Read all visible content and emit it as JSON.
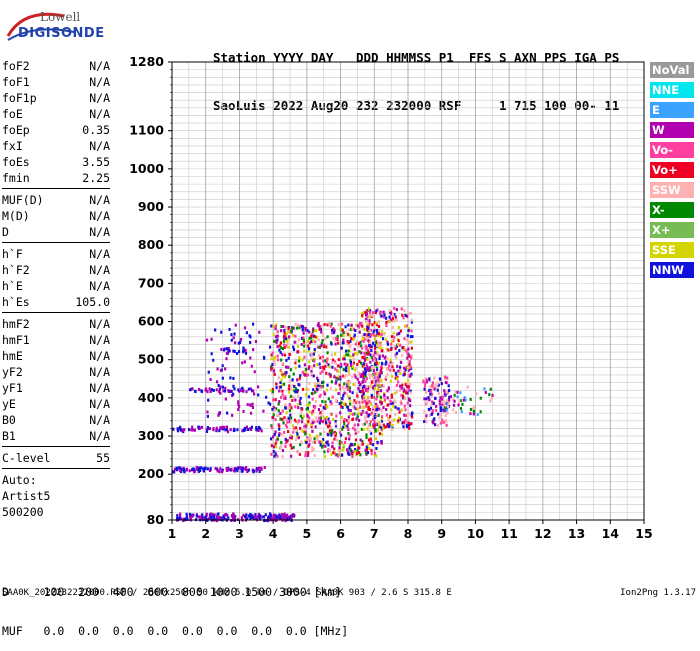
{
  "logo": {
    "line1": "Lowell",
    "line2": "DIGISONDE"
  },
  "header": {
    "row1": "Station YYYY DAY   DDD HHMMSS P1  FFS S AXN PPS IGA PS",
    "row2": "SaoLuis 2022 Aug20 232 232000 RSF     1 715 100 00- 11"
  },
  "params": {
    "group1": [
      {
        "name": "foF2",
        "value": "N/A"
      },
      {
        "name": "foF1",
        "value": "N/A"
      },
      {
        "name": "foF1p",
        "value": "N/A"
      },
      {
        "name": "foE",
        "value": "N/A"
      },
      {
        "name": "foEp",
        "value": "0.35"
      },
      {
        "name": "fxI",
        "value": "N/A"
      },
      {
        "name": "foEs",
        "value": "3.55"
      },
      {
        "name": "fmin",
        "value": "2.25"
      }
    ],
    "group2": [
      {
        "name": "MUF(D)",
        "value": "N/A"
      },
      {
        "name": "M(D)",
        "value": "N/A"
      },
      {
        "name": "D",
        "value": "N/A"
      }
    ],
    "group3": [
      {
        "name": "h`F",
        "value": "N/A"
      },
      {
        "name": "h`F2",
        "value": "N/A"
      },
      {
        "name": "h`E",
        "value": "N/A"
      },
      {
        "name": "h`Es",
        "value": "105.0"
      }
    ],
    "group4": [
      {
        "name": "hmF2",
        "value": "N/A"
      },
      {
        "name": "hmF1",
        "value": "N/A"
      },
      {
        "name": "hmE",
        "value": "N/A"
      },
      {
        "name": "yF2",
        "value": "N/A"
      },
      {
        "name": "yF1",
        "value": "N/A"
      },
      {
        "name": "yE",
        "value": "N/A"
      },
      {
        "name": "B0",
        "value": "N/A"
      },
      {
        "name": "B1",
        "value": "N/A"
      }
    ],
    "clevel": {
      "name": "C-level",
      "value": "55"
    },
    "auto": [
      "Auto:",
      "Artist5",
      "500200"
    ]
  },
  "legend": [
    {
      "label": "NoVal",
      "color": "#999999"
    },
    {
      "label": "NNE",
      "color": "#00e5ee"
    },
    {
      "label": "E",
      "color": "#3ba3ff"
    },
    {
      "label": "W",
      "color": "#b000b0"
    },
    {
      "label": "Vo-",
      "color": "#ff3fa0"
    },
    {
      "label": "Vo+",
      "color": "#ee0022"
    },
    {
      "label": "SSW",
      "color": "#ffb0b0"
    },
    {
      "label": "X-",
      "color": "#008800"
    },
    {
      "label": "X+",
      "color": "#77bb55"
    },
    {
      "label": "SSE",
      "color": "#d4d400"
    },
    {
      "label": "NNW",
      "color": "#1111dd"
    }
  ],
  "chart_data": {
    "type": "scatter",
    "xlabel": "",
    "ylabel": "",
    "xlim": [
      1,
      15
    ],
    "x_ticks": [
      "1",
      "2",
      "3",
      "4",
      "5",
      "6",
      "7",
      "8",
      "9",
      "10",
      "11",
      "12",
      "13",
      "14",
      "15"
    ],
    "y_ticks_major": [
      "80",
      "200",
      "300",
      "400",
      "500",
      "600",
      "700",
      "800",
      "900",
      "1000",
      "1100",
      "1280"
    ],
    "ylim": [
      80,
      1280
    ],
    "grid": true,
    "traces": [
      {
        "name": "Es low",
        "f": [
          1.1,
          4.6
        ],
        "h": [
          82,
          100
        ],
        "colors": [
          "#1111dd",
          "#b000b0"
        ],
        "density": 220
      },
      {
        "name": "Es 2nd hop",
        "f": [
          1.0,
          3.8
        ],
        "h": [
          210,
          222
        ],
        "colors": [
          "#1111dd",
          "#b000b0"
        ],
        "density": 90
      },
      {
        "name": "Es 3rd hop",
        "f": [
          1.0,
          3.7
        ],
        "h": [
          315,
          328
        ],
        "colors": [
          "#1111dd",
          "#b000b0"
        ],
        "density": 70
      },
      {
        "name": "Es 4th hop",
        "f": [
          1.5,
          3.4
        ],
        "h": [
          420,
          430
        ],
        "colors": [
          "#1111dd",
          "#b000b0"
        ],
        "density": 35
      },
      {
        "name": "Es 5th hop",
        "f": [
          2.5,
          3.2
        ],
        "h": [
          520,
          535
        ],
        "colors": [
          "#1111dd",
          "#b000b0"
        ],
        "density": 18
      },
      {
        "name": "F region",
        "f": [
          3.9,
          7.2
        ],
        "h": [
          250,
          600
        ],
        "colors": [
          "#b000b0",
          "#ff3fa0",
          "#ee0022",
          "#1111dd",
          "#008800",
          "#d4d400",
          "#ffb0b0"
        ],
        "density": 1100
      },
      {
        "name": "F high",
        "f": [
          6.6,
          8.1
        ],
        "h": [
          320,
          640
        ],
        "colors": [
          "#ff3fa0",
          "#ee0022",
          "#b000b0",
          "#d4d400",
          "#ffb0b0",
          "#1111dd"
        ],
        "density": 500
      },
      {
        "name": "F tail",
        "f": [
          8.4,
          9.2
        ],
        "h": [
          330,
          460
        ],
        "colors": [
          "#ffb0b0",
          "#b000b0",
          "#ff3fa0",
          "#1111dd"
        ],
        "density": 120
      },
      {
        "name": "F tail2",
        "f": [
          9.0,
          10.5
        ],
        "h": [
          360,
          440
        ],
        "colors": [
          "#b000b0",
          "#ffb0b0",
          "#3ba3ff",
          "#008800"
        ],
        "density": 50
      },
      {
        "name": "scatter",
        "f": [
          2.0,
          4.0
        ],
        "h": [
          350,
          600
        ],
        "colors": [
          "#b000b0",
          "#1111dd"
        ],
        "density": 90
      }
    ]
  },
  "dmuf": {
    "d_row": "D     100  200  400  600  800 1000 1500 3000 [km]",
    "muf_row": "MUF   0.0  0.0  0.0  0.0  0.0  0.0  0.0  0.0 [MHz]"
  },
  "footer": {
    "left": "SAA0K_2022232232000.RSF / 280fx256h 50 kHz 5.0 km / DPS-4 SAA0K 903 / 2.6 S 315.8 E",
    "right": "Ion2Png 1.3.17"
  }
}
